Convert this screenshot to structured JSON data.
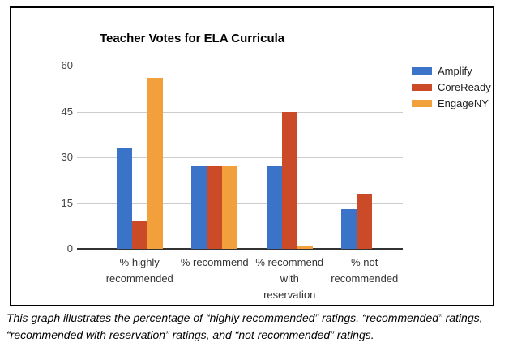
{
  "page": {
    "caption": "This graph illustrates the percentage of “highly recommended” ratings, “recommended” ratings,\n“recommended with reservation” ratings, and “not recommended” ratings."
  },
  "chart_data": {
    "type": "bar",
    "title": "Teacher Votes for ELA Curricula",
    "categories": [
      "% highly\nrecommended",
      "% recommend",
      "% recommend\nwith\nreservation",
      "% not\nrecommended"
    ],
    "series": [
      {
        "name": "Amplify",
        "color": "#3B73C9",
        "values": [
          33,
          27,
          27,
          13
        ]
      },
      {
        "name": "CoreReady",
        "color": "#CB4B28",
        "values": [
          9,
          27,
          45,
          18
        ]
      },
      {
        "name": "EngageNY",
        "color": "#F1A03C",
        "values": [
          56,
          27,
          1,
          0
        ]
      }
    ],
    "xlabel": "",
    "ylabel": "",
    "ylim": [
      0,
      60
    ],
    "yticks": [
      0,
      15,
      30,
      45,
      60
    ],
    "grid": true,
    "legend_position": "right",
    "colors": {
      "gridline": "#CCCCCC",
      "axis_line": "#333333",
      "tick_text": "#444444",
      "title_text": "#000000",
      "border": "#000000"
    }
  }
}
